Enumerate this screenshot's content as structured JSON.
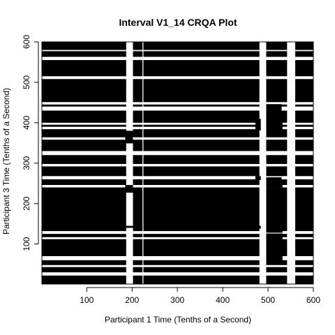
{
  "chart_data": {
    "type": "heatmap",
    "title": "Interval V1_14 CRQA Plot",
    "xlabel": "Participant 1 Time (Tenths of a Second)",
    "ylabel": "Participant 3 Time (Tenths of a Second)",
    "xlim": [
      1,
      600
    ],
    "ylim": [
      1,
      600
    ],
    "x_ticks": [
      "100",
      "200",
      "300",
      "400",
      "500",
      "600"
    ],
    "y_ticks": [
      "100",
      "200",
      "300",
      "400",
      "500",
      "600"
    ],
    "recurrence_color": "#000000",
    "background_color": "#ffffff",
    "x_recurrent_ranges": [
      [
        1,
        187
      ],
      [
        202,
        223
      ],
      [
        225,
        481
      ],
      [
        496,
        542
      ],
      [
        560,
        600
      ]
    ],
    "x_gap_ranges": [
      [
        187,
        202
      ],
      [
        481,
        496
      ],
      [
        542,
        560
      ]
    ],
    "y_recurrent_ranges": [
      [
        1,
        22
      ],
      [
        30,
        43
      ],
      [
        48,
        60
      ],
      [
        70,
        112
      ],
      [
        117,
        125
      ],
      [
        132,
        240
      ],
      [
        246,
        260
      ],
      [
        268,
        292
      ],
      [
        298,
        320
      ],
      [
        330,
        358
      ],
      [
        364,
        384
      ],
      [
        390,
        395
      ],
      [
        400,
        430
      ],
      [
        440,
        445
      ],
      [
        451,
        508
      ],
      [
        515,
        555
      ],
      [
        563,
        577
      ],
      [
        580,
        600
      ]
    ],
    "sub_blocks": [
      {
        "x": [
          185,
          202
        ],
        "y": [
          349,
          380
        ]
      },
      {
        "x": [
          185,
          202
        ],
        "y": [
          227,
          246
        ]
      },
      {
        "x": [
          185,
          202
        ],
        "y": [
          140,
          145
        ]
      },
      {
        "x": [
          472,
          484
        ],
        "y": [
          381,
          410
        ]
      },
      {
        "x": [
          472,
          484
        ],
        "y": [
          258,
          268
        ]
      },
      {
        "x": [
          472,
          484
        ],
        "y": [
          138,
          145
        ]
      },
      {
        "x": [
          496,
          530
        ],
        "y": [
          417,
          446
        ]
      },
      {
        "x": [
          496,
          532
        ],
        "y": [
          382,
          410
        ]
      },
      {
        "x": [
          496,
          530
        ],
        "y": [
          335,
          345
        ]
      },
      {
        "x": [
          496,
          532
        ],
        "y": [
          268,
          278
        ]
      },
      {
        "x": [
          496,
          530
        ],
        "y": [
          258,
          265
        ]
      },
      {
        "x": [
          496,
          532
        ],
        "y": [
          240,
          250
        ]
      },
      {
        "x": [
          496,
          532
        ],
        "y": [
          128,
          135
        ]
      },
      {
        "x": [
          496,
          532
        ],
        "y": [
          108,
          126
        ]
      },
      {
        "x": [
          496,
          532
        ],
        "y": [
          55,
          75
        ]
      },
      {
        "x": [
          496,
          530
        ],
        "y": [
          540,
          553
        ]
      }
    ]
  }
}
